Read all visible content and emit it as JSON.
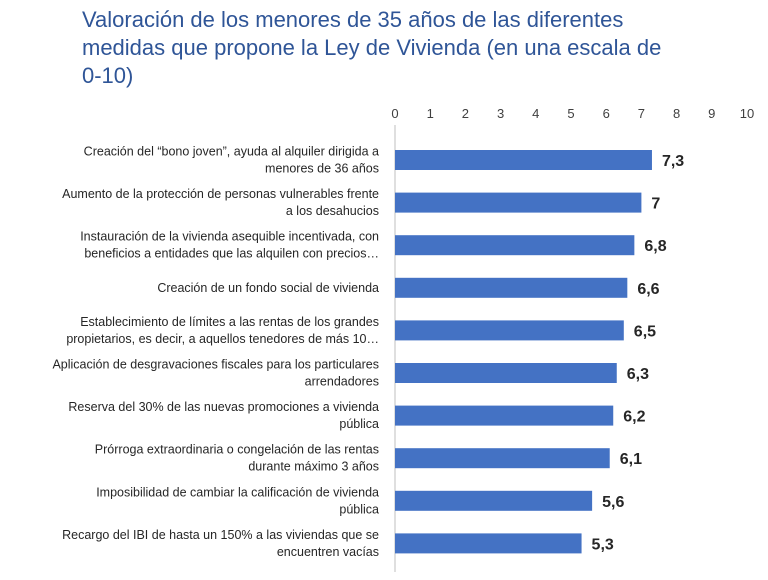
{
  "chart_data": {
    "type": "bar",
    "orientation": "horizontal",
    "title": "Valoración de los menores de 35 años de las diferentes medidas que propone la Ley de Vivienda (en una escala de 0-10)",
    "xlim": [
      0,
      10
    ],
    "ticks": [
      "0",
      "1",
      "2",
      "3",
      "4",
      "5",
      "6",
      "7",
      "8",
      "9",
      "10"
    ],
    "grid": false,
    "legend": "none",
    "bar_color": "#4472c4",
    "title_color": "#2f5597",
    "categories": [
      [
        "Creación del “bono joven”, ayuda al alquiler dirigida a",
        "menores de 36 años"
      ],
      [
        "Aumento de la protección de personas vulnerables frente",
        "a los desahucios"
      ],
      [
        "Instauración de la vivienda asequible incentivada, con",
        "beneficios a entidades que las alquilen con precios…"
      ],
      [
        "Creación de un fondo social de vivienda"
      ],
      [
        "Establecimiento de límites a las rentas de los grandes",
        "propietarios, es decir, a aquellos tenedores de más 10…"
      ],
      [
        "Aplicación de desgravaciones fiscales para los particulares",
        "arrendadores"
      ],
      [
        "Reserva del 30% de las nuevas promociones a vivienda",
        "pública"
      ],
      [
        "Prórroga extraordinaria o congelación de las rentas",
        "durante máximo 3 años"
      ],
      [
        "Imposibilidad de cambiar la calificación de vivienda",
        "pública"
      ],
      [
        "Recargo del IBI de hasta un 150% a las viviendas que se",
        "encuentren vacías"
      ]
    ],
    "values": [
      7.3,
      7,
      6.8,
      6.6,
      6.5,
      6.3,
      6.2,
      6.1,
      5.6,
      5.3
    ],
    "value_labels": [
      "7,3",
      "7",
      "6,8",
      "6,6",
      "6,5",
      "6,3",
      "6,2",
      "6,1",
      "5,6",
      "5,3"
    ]
  }
}
